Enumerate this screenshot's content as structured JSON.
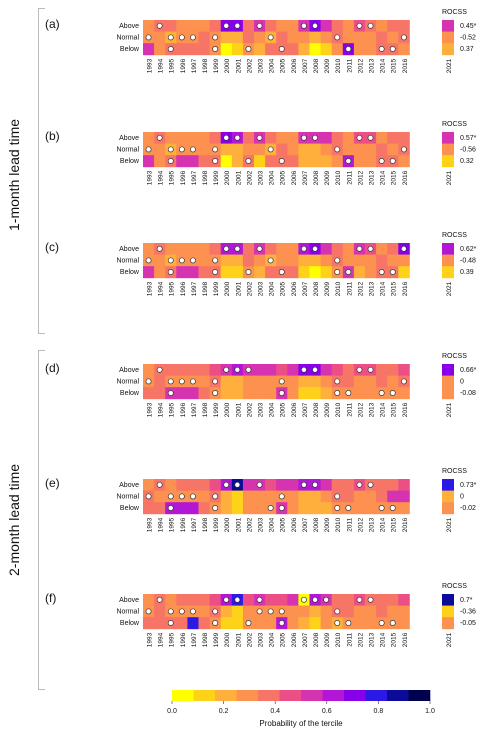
{
  "figure": {
    "side_labels": [
      "1-month lead time",
      "2-month lead time"
    ],
    "row_labels": [
      "Above",
      "Normal",
      "Below"
    ],
    "score_header": "ROCSS",
    "years": [
      "1993",
      "1994",
      "1995",
      "1996",
      "1997",
      "1998",
      "1999",
      "2000",
      "2001",
      "2002",
      "2003",
      "2004",
      "2005",
      "2006",
      "2007",
      "2008",
      "2009",
      "2010",
      "2011",
      "2012",
      "2013",
      "2014",
      "2015",
      "2016"
    ],
    "extra_year": "2021",
    "colorbar": {
      "label": "Probability of the tercile",
      "ticks": [
        "0.0",
        "0.2",
        "0.4",
        "0.6",
        "0.8",
        "1.0"
      ],
      "colors": [
        "#ffff00",
        "#ffd21a",
        "#ffb03c",
        "#fc9150",
        "#f77566",
        "#ec4f85",
        "#d633b0",
        "#b317d6",
        "#8800ea",
        "#2d19e6",
        "#0b0b9a",
        "#000050"
      ]
    }
  },
  "chart_data": [
    {
      "type": "heatmap",
      "panel": "(a)",
      "rocss": [
        "0.45*",
        "-0.52",
        "0.37"
      ],
      "forecast_2021": [
        0.5,
        0.32,
        0.18
      ],
      "values": [
        [
          0.3,
          0.4,
          0.34,
          0.28,
          0.3,
          0.26,
          0.4,
          0.72,
          0.7,
          0.34,
          0.55,
          0.34,
          0.3,
          0.32,
          0.55,
          0.7,
          0.58,
          0.36,
          0.3,
          0.46,
          0.4,
          0.3,
          0.35,
          0.34
        ],
        [
          0.3,
          0.3,
          0.2,
          0.26,
          0.26,
          0.34,
          0.3,
          0.22,
          0.2,
          0.34,
          0.28,
          0.2,
          0.34,
          0.3,
          0.26,
          0.22,
          0.28,
          0.36,
          0.3,
          0.28,
          0.3,
          0.34,
          0.3,
          0.34
        ],
        [
          0.58,
          0.3,
          0.36,
          0.4,
          0.38,
          0.4,
          0.3,
          0.06,
          0.1,
          0.32,
          0.17,
          0.36,
          0.36,
          0.38,
          0.19,
          0.08,
          0.14,
          0.28,
          0.7,
          0.26,
          0.3,
          0.36,
          0.35,
          0.32
        ]
      ],
      "dots": [
        [
          0,
          1,
          0,
          0,
          0,
          0,
          0,
          1,
          1,
          0,
          1,
          0,
          0,
          0,
          1,
          1,
          0,
          0,
          0,
          1,
          1,
          0,
          0,
          0
        ],
        [
          1,
          0,
          1,
          1,
          1,
          0,
          1,
          0,
          0,
          0,
          0,
          1,
          0,
          0,
          0,
          0,
          0,
          1,
          0,
          0,
          0,
          0,
          0,
          1
        ],
        [
          0,
          0,
          1,
          0,
          0,
          0,
          1,
          0,
          0,
          1,
          0,
          0,
          1,
          0,
          0,
          0,
          0,
          0,
          1,
          0,
          0,
          1,
          1,
          0
        ]
      ]
    },
    {
      "type": "heatmap",
      "panel": "(b)",
      "rocss": [
        "0.57*",
        "-0.56",
        "0.32"
      ],
      "forecast_2021": [
        0.55,
        0.3,
        0.15
      ],
      "values": [
        [
          0.32,
          0.4,
          0.3,
          0.26,
          0.28,
          0.26,
          0.36,
          0.72,
          0.62,
          0.34,
          0.56,
          0.36,
          0.3,
          0.32,
          0.56,
          0.58,
          0.55,
          0.34,
          0.32,
          0.46,
          0.44,
          0.3,
          0.34,
          0.36
        ],
        [
          0.3,
          0.3,
          0.2,
          0.26,
          0.26,
          0.3,
          0.3,
          0.2,
          0.2,
          0.3,
          0.28,
          0.22,
          0.34,
          0.3,
          0.24,
          0.24,
          0.28,
          0.36,
          0.3,
          0.28,
          0.3,
          0.34,
          0.3,
          0.34
        ],
        [
          0.55,
          0.3,
          0.4,
          0.5,
          0.56,
          0.4,
          0.34,
          0.08,
          0.18,
          0.36,
          0.16,
          0.36,
          0.36,
          0.38,
          0.2,
          0.18,
          0.17,
          0.3,
          0.62,
          0.26,
          0.26,
          0.36,
          0.36,
          0.3
        ]
      ],
      "dots": [
        [
          0,
          1,
          0,
          0,
          0,
          0,
          0,
          1,
          1,
          0,
          1,
          0,
          0,
          0,
          1,
          1,
          0,
          0,
          0,
          1,
          1,
          0,
          0,
          0
        ],
        [
          1,
          0,
          1,
          1,
          1,
          0,
          1,
          0,
          0,
          0,
          0,
          1,
          0,
          0,
          0,
          0,
          0,
          1,
          0,
          0,
          0,
          0,
          0,
          1
        ],
        [
          0,
          0,
          1,
          0,
          0,
          0,
          1,
          0,
          0,
          1,
          0,
          0,
          1,
          0,
          0,
          0,
          0,
          0,
          1,
          0,
          0,
          1,
          1,
          0
        ]
      ]
    },
    {
      "type": "heatmap",
      "panel": "(c)",
      "rocss": [
        "0.62*",
        "-0.48",
        "0.39"
      ],
      "forecast_2021": [
        0.6,
        0.25,
        0.15
      ],
      "values": [
        [
          0.3,
          0.4,
          0.3,
          0.3,
          0.28,
          0.3,
          0.36,
          0.62,
          0.64,
          0.34,
          0.5,
          0.36,
          0.3,
          0.32,
          0.62,
          0.72,
          0.58,
          0.34,
          0.32,
          0.5,
          0.44,
          0.3,
          0.36,
          0.7
        ],
        [
          0.3,
          0.3,
          0.2,
          0.26,
          0.3,
          0.3,
          0.3,
          0.22,
          0.2,
          0.34,
          0.28,
          0.22,
          0.32,
          0.3,
          0.24,
          0.2,
          0.28,
          0.36,
          0.3,
          0.28,
          0.3,
          0.34,
          0.3,
          0.26
        ],
        [
          0.55,
          0.3,
          0.4,
          0.52,
          0.56,
          0.4,
          0.34,
          0.16,
          0.16,
          0.32,
          0.22,
          0.4,
          0.36,
          0.38,
          0.14,
          0.08,
          0.16,
          0.3,
          0.58,
          0.22,
          0.26,
          0.36,
          0.34,
          0.1
        ]
      ],
      "dots": [
        [
          0,
          1,
          0,
          0,
          0,
          0,
          0,
          1,
          1,
          0,
          1,
          0,
          0,
          0,
          1,
          1,
          0,
          0,
          0,
          1,
          1,
          0,
          0,
          1
        ],
        [
          1,
          0,
          1,
          1,
          1,
          0,
          1,
          0,
          0,
          0,
          0,
          1,
          0,
          0,
          0,
          0,
          0,
          1,
          0,
          0,
          0,
          0,
          0,
          0
        ],
        [
          0,
          0,
          1,
          0,
          0,
          0,
          1,
          0,
          0,
          1,
          0,
          0,
          1,
          0,
          0,
          0,
          0,
          1,
          1,
          0,
          0,
          1,
          1,
          0
        ]
      ]
    },
    {
      "type": "heatmap",
      "panel": "(d)",
      "rocss": [
        "0.66*",
        "0",
        "-0.08"
      ],
      "forecast_2021": [
        0.7,
        0.3,
        0.3
      ],
      "values": [
        [
          0.3,
          0.4,
          0.36,
          0.34,
          0.36,
          0.4,
          0.44,
          0.58,
          0.64,
          0.5,
          0.54,
          0.52,
          0.48,
          0.5,
          0.68,
          0.7,
          0.56,
          0.42,
          0.4,
          0.48,
          0.44,
          0.36,
          0.4,
          0.42
        ],
        [
          0.32,
          0.34,
          0.3,
          0.28,
          0.3,
          0.28,
          0.34,
          0.22,
          0.2,
          0.3,
          0.26,
          0.3,
          0.3,
          0.3,
          0.2,
          0.2,
          0.28,
          0.34,
          0.34,
          0.3,
          0.32,
          0.34,
          0.32,
          0.34
        ],
        [
          0.38,
          0.36,
          0.56,
          0.56,
          0.58,
          0.4,
          0.3,
          0.2,
          0.2,
          0.26,
          0.3,
          0.3,
          0.58,
          0.32,
          0.14,
          0.12,
          0.24,
          0.26,
          0.28,
          0.28,
          0.3,
          0.32,
          0.3,
          0.28
        ]
      ],
      "dots": [
        [
          0,
          1,
          0,
          0,
          0,
          0,
          0,
          1,
          1,
          1,
          0,
          0,
          0,
          0,
          1,
          1,
          0,
          0,
          0,
          1,
          1,
          0,
          0,
          0
        ],
        [
          1,
          0,
          1,
          1,
          1,
          0,
          1,
          0,
          0,
          0,
          0,
          0,
          1,
          0,
          0,
          0,
          0,
          1,
          0,
          0,
          0,
          0,
          0,
          1
        ],
        [
          0,
          0,
          1,
          0,
          0,
          0,
          1,
          0,
          0,
          0,
          0,
          0,
          1,
          0,
          0,
          0,
          0,
          1,
          1,
          0,
          0,
          1,
          1,
          0
        ]
      ]
    },
    {
      "type": "heatmap",
      "panel": "(e)",
      "rocss": [
        "0.73*",
        "0",
        "-0.02"
      ],
      "forecast_2021": [
        0.82,
        0.2,
        0.3
      ],
      "values": [
        [
          0.3,
          0.4,
          0.26,
          0.36,
          0.34,
          0.38,
          0.44,
          0.62,
          0.86,
          0.5,
          0.54,
          0.48,
          0.52,
          0.5,
          0.64,
          0.64,
          0.58,
          0.38,
          0.4,
          0.44,
          0.4,
          0.36,
          0.4,
          0.42
        ],
        [
          0.34,
          0.32,
          0.3,
          0.28,
          0.3,
          0.3,
          0.34,
          0.2,
          0.16,
          0.3,
          0.3,
          0.32,
          0.3,
          0.32,
          0.2,
          0.2,
          0.28,
          0.34,
          0.34,
          0.3,
          0.32,
          0.34,
          0.58,
          0.58
        ],
        [
          0.38,
          0.36,
          0.62,
          0.62,
          0.62,
          0.38,
          0.3,
          0.2,
          0.1,
          0.28,
          0.28,
          0.32,
          0.58,
          0.32,
          0.22,
          0.2,
          0.24,
          0.3,
          0.3,
          0.3,
          0.3,
          0.3,
          0.28,
          0.28
        ]
      ],
      "dots": [
        [
          0,
          1,
          0,
          0,
          0,
          0,
          0,
          1,
          1,
          0,
          1,
          0,
          0,
          0,
          1,
          1,
          0,
          0,
          0,
          1,
          1,
          0,
          0,
          0
        ],
        [
          1,
          0,
          1,
          1,
          1,
          0,
          1,
          0,
          0,
          0,
          0,
          0,
          1,
          0,
          0,
          0,
          0,
          1,
          0,
          0,
          0,
          0,
          0,
          0
        ],
        [
          0,
          0,
          1,
          0,
          0,
          0,
          1,
          0,
          0,
          0,
          0,
          1,
          1,
          0,
          0,
          0,
          0,
          1,
          1,
          0,
          0,
          1,
          1,
          0
        ]
      ]
    },
    {
      "type": "heatmap",
      "panel": "(f)",
      "rocss": [
        "0.7*",
        "-0.36",
        "-0.05"
      ],
      "forecast_2021": [
        0.9,
        0.1,
        0.25
      ],
      "values": [
        [
          0.3,
          0.4,
          0.32,
          0.36,
          0.4,
          0.38,
          0.42,
          0.64,
          0.78,
          0.48,
          0.52,
          0.44,
          0.46,
          0.5,
          0.04,
          0.62,
          0.52,
          0.4,
          0.36,
          0.44,
          0.4,
          0.36,
          0.4,
          0.42
        ],
        [
          0.32,
          0.34,
          0.3,
          0.3,
          0.32,
          0.3,
          0.34,
          0.2,
          0.16,
          0.3,
          0.28,
          0.3,
          0.3,
          0.3,
          0.3,
          0.22,
          0.28,
          0.34,
          0.34,
          0.3,
          0.32,
          0.34,
          0.3,
          0.3
        ],
        [
          0.4,
          0.36,
          0.38,
          0.4,
          0.8,
          0.38,
          0.3,
          0.16,
          0.12,
          0.3,
          0.3,
          0.3,
          0.62,
          0.3,
          0.24,
          0.16,
          0.26,
          0.2,
          0.3,
          0.28,
          0.3,
          0.3,
          0.32,
          0.3
        ]
      ],
      "dots": [
        [
          0,
          1,
          0,
          0,
          0,
          0,
          0,
          1,
          1,
          0,
          1,
          0,
          0,
          0,
          1,
          1,
          1,
          0,
          0,
          1,
          1,
          0,
          0,
          0
        ],
        [
          1,
          0,
          1,
          1,
          1,
          0,
          1,
          0,
          0,
          0,
          1,
          1,
          1,
          0,
          0,
          0,
          0,
          1,
          0,
          0,
          0,
          0,
          0,
          0
        ],
        [
          0,
          0,
          1,
          0,
          0,
          0,
          1,
          0,
          0,
          1,
          0,
          0,
          1,
          0,
          0,
          0,
          0,
          1,
          1,
          0,
          0,
          1,
          1,
          0
        ]
      ]
    }
  ]
}
